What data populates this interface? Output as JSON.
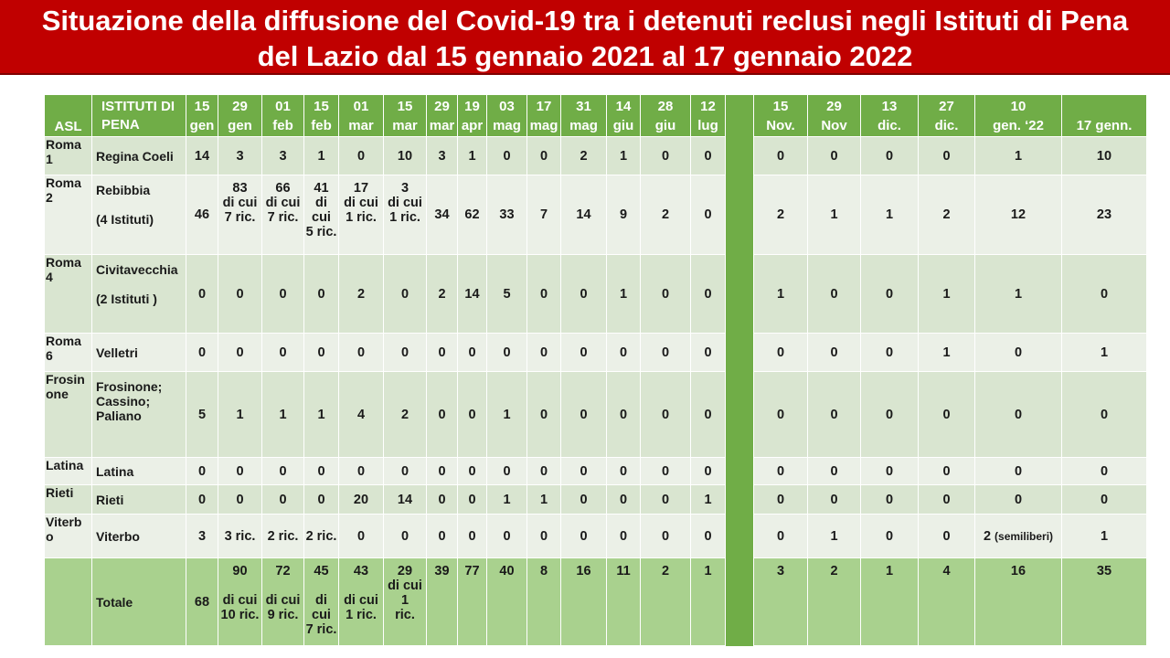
{
  "title": {
    "line1": "Situazione della diffusione del Covid-19 tra i detenuti reclusi negli Istituti di Pena",
    "line2": "del Lazio dal 15 gennaio 2021 al 17 gennaio 2022"
  },
  "header": {
    "asl": "ASL",
    "istituti_1": "ISTITUTI DI",
    "istituti_2": "PENA",
    "dates": [
      [
        "15",
        "gen"
      ],
      [
        "29",
        "gen"
      ],
      [
        "01",
        "feb"
      ],
      [
        "15",
        "feb"
      ],
      [
        "01",
        "mar"
      ],
      [
        "15",
        "mar"
      ],
      [
        "29",
        "mar"
      ],
      [
        "19",
        "apr"
      ],
      [
        "03",
        "mag"
      ],
      [
        "17",
        "mag"
      ],
      [
        "31",
        "mag"
      ],
      [
        "14",
        "giu"
      ],
      [
        "28",
        "giu"
      ],
      [
        "12",
        "lug"
      ],
      [
        "15",
        "Nov."
      ],
      [
        "29",
        "Nov"
      ],
      [
        "13",
        "dic."
      ],
      [
        "27",
        "dic."
      ],
      [
        "10",
        "gen. ‘22"
      ],
      [
        "",
        "17 genn."
      ]
    ]
  },
  "rows": [
    {
      "asl": [
        "Roma",
        "1"
      ],
      "inst": [
        "Regina Coeli"
      ],
      "v": [
        "14",
        "3",
        "3",
        "1",
        "0",
        "10",
        "3",
        "1",
        "0",
        "0",
        "2",
        "1",
        "0",
        "0",
        "0",
        "0",
        "0",
        "0",
        "1",
        "10"
      ]
    },
    {
      "asl": [
        "Roma",
        "2"
      ],
      "inst": [
        "Rebibbia",
        "",
        "(4 Istituti)"
      ],
      "v": [
        "46",
        "83|di cui|7 ric.",
        "66|di cui|7 ric.",
        "41|di cui|5 ric.",
        "17|di cui|1 ric.",
        "3|di cui|1 ric.",
        "34",
        "62",
        "33",
        "7",
        "14",
        "9",
        "2",
        "0",
        "2",
        "1",
        "1",
        "2",
        "12",
        "23"
      ]
    },
    {
      "asl": [
        "Roma",
        "4"
      ],
      "inst": [
        "Civitavecchia",
        "",
        "(2 Istituti )"
      ],
      "v": [
        "0",
        "0",
        "0",
        "0",
        "2",
        "0",
        "2",
        "14",
        "5",
        "0",
        "0",
        "1",
        "0",
        "0",
        "1",
        "0",
        "0",
        "1",
        "1",
        "0"
      ]
    },
    {
      "asl": [
        "Roma",
        "6"
      ],
      "inst": [
        "Velletri"
      ],
      "v": [
        "0",
        "0",
        "0",
        "0",
        "0",
        "0",
        "0",
        "0",
        "0",
        "0",
        "0",
        "0",
        "0",
        "0",
        "0",
        "0",
        "0",
        "1",
        "0",
        "1"
      ]
    },
    {
      "asl": [
        "Frosin",
        "one"
      ],
      "inst": [
        "Frosinone;",
        "Cassino;",
        "Paliano"
      ],
      "v": [
        "5",
        "1",
        "1",
        "1",
        "4",
        "2",
        "0",
        "0",
        "1",
        "0",
        "0",
        "0",
        "0",
        "0",
        "0",
        "0",
        "0",
        "0",
        "0",
        "0"
      ]
    },
    {
      "asl": [
        "Latina"
      ],
      "inst": [
        "Latina"
      ],
      "v": [
        "0",
        "0",
        "0",
        "0",
        "0",
        "0",
        "0",
        "0",
        "0",
        "0",
        "0",
        "0",
        "0",
        "0",
        "0",
        "0",
        "0",
        "0",
        "0",
        "0"
      ]
    },
    {
      "asl": [
        "Rieti"
      ],
      "inst": [
        "Rieti"
      ],
      "v": [
        "0",
        "0",
        "0",
        "0",
        "20",
        "14",
        "0",
        "0",
        "1",
        "1",
        "0",
        "0",
        "0",
        "1",
        "0",
        "0",
        "0",
        "0",
        "0",
        "0"
      ]
    },
    {
      "asl": [
        "Viterb",
        "o"
      ],
      "inst": [
        "Viterbo"
      ],
      "v": [
        "3",
        "3 ric.",
        "2 ric.",
        "2 ric.",
        "0",
        "0",
        "0",
        "0",
        "0",
        "0",
        "0",
        "0",
        "0",
        "0",
        "0",
        "1",
        "0",
        "0",
        "2 (semiliberi)",
        "1"
      ]
    }
  ],
  "total": {
    "label": "Totale",
    "v": [
      "68",
      "90||di cui|10 ric.",
      "72||di cui|9 ric.",
      "45||di cui|7 ric.",
      "43||di cui|1 ric.",
      "29|di cui|1|ric.",
      "39",
      "77",
      "40",
      "8",
      "16",
      "11",
      "2",
      "1",
      "3",
      "2",
      "1",
      "4",
      "16",
      "35"
    ]
  }
}
